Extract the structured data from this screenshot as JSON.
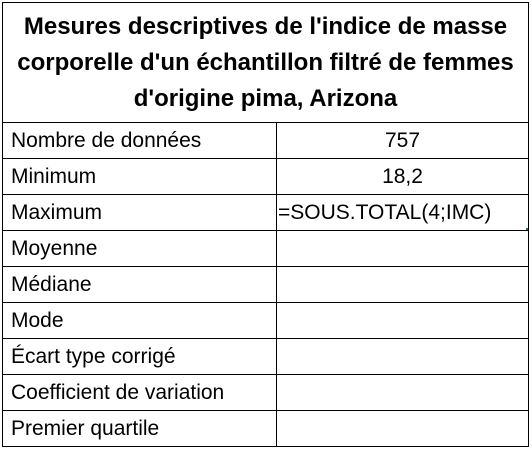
{
  "title": "Mesures descriptives de l'indice de masse corporelle d'un échantillon filtré de femmes d'origine pima, Arizona",
  "rows": [
    {
      "label": "Nombre de données",
      "value": "757"
    },
    {
      "label": "Minimum",
      "value": "18,2"
    },
    {
      "label": "Maximum",
      "value": "=SOUS.TOTAL(4;IMC)"
    },
    {
      "label": "Moyenne",
      "value": ""
    },
    {
      "label": "Médiane",
      "value": ""
    },
    {
      "label": "Mode",
      "value": ""
    },
    {
      "label": "Écart type corrigé",
      "value": ""
    },
    {
      "label": "Coefficient de variation",
      "value": ""
    },
    {
      "label": "Premier quartile",
      "value": ""
    }
  ],
  "selection": {
    "active_cell_color": "#217346"
  }
}
